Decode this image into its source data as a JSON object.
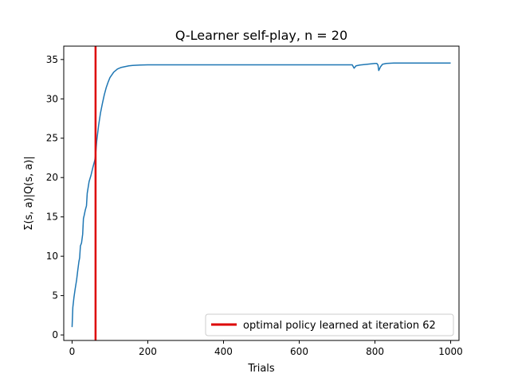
{
  "chart_data": {
    "type": "line",
    "title": "Q-Learner self-play, n = 20",
    "xlabel": "Trials",
    "ylabel": "Σ(s, a)|Q(s, a)|",
    "xlim": [
      -22,
      1022
    ],
    "ylim": [
      -0.7,
      36.7
    ],
    "xticks": [
      0,
      200,
      400,
      600,
      800,
      1000
    ],
    "yticks": [
      0,
      5,
      10,
      15,
      20,
      25,
      30,
      35
    ],
    "grid": false,
    "legend_position": "lower-right",
    "series": [
      {
        "color": "#1f77b4",
        "x": [
          0,
          2,
          5,
          8,
          12,
          15,
          18,
          20,
          22,
          25,
          28,
          30,
          32,
          35,
          38,
          40,
          45,
          50,
          55,
          60,
          62,
          65,
          70,
          75,
          80,
          85,
          90,
          95,
          100,
          110,
          120,
          130,
          140,
          150,
          160,
          170,
          180,
          200,
          250,
          300,
          400,
          500,
          600,
          700,
          740,
          745,
          750,
          760,
          770,
          780,
          790,
          800,
          805,
          808,
          810,
          815,
          820,
          830,
          850,
          900,
          1000
        ],
        "y": [
          1.0,
          3.5,
          4.8,
          5.8,
          7.0,
          8.2,
          9.3,
          9.8,
          11.3,
          11.7,
          12.8,
          14.8,
          15.2,
          15.9,
          16.4,
          18.0,
          19.5,
          20.3,
          21.3,
          22.2,
          22.8,
          24.6,
          26.6,
          28.2,
          29.4,
          30.5,
          31.4,
          32.1,
          32.7,
          33.4,
          33.8,
          34.0,
          34.1,
          34.2,
          34.25,
          34.28,
          34.3,
          34.32,
          34.33,
          34.33,
          34.33,
          34.33,
          34.33,
          34.33,
          34.33,
          33.9,
          34.2,
          34.3,
          34.35,
          34.4,
          34.45,
          34.5,
          34.5,
          34.3,
          33.6,
          34.1,
          34.4,
          34.5,
          34.55,
          34.55,
          34.55
        ]
      }
    ],
    "vline": {
      "x": 62,
      "color": "#dd0000",
      "label": "optimal policy learned at iteration 62"
    }
  }
}
